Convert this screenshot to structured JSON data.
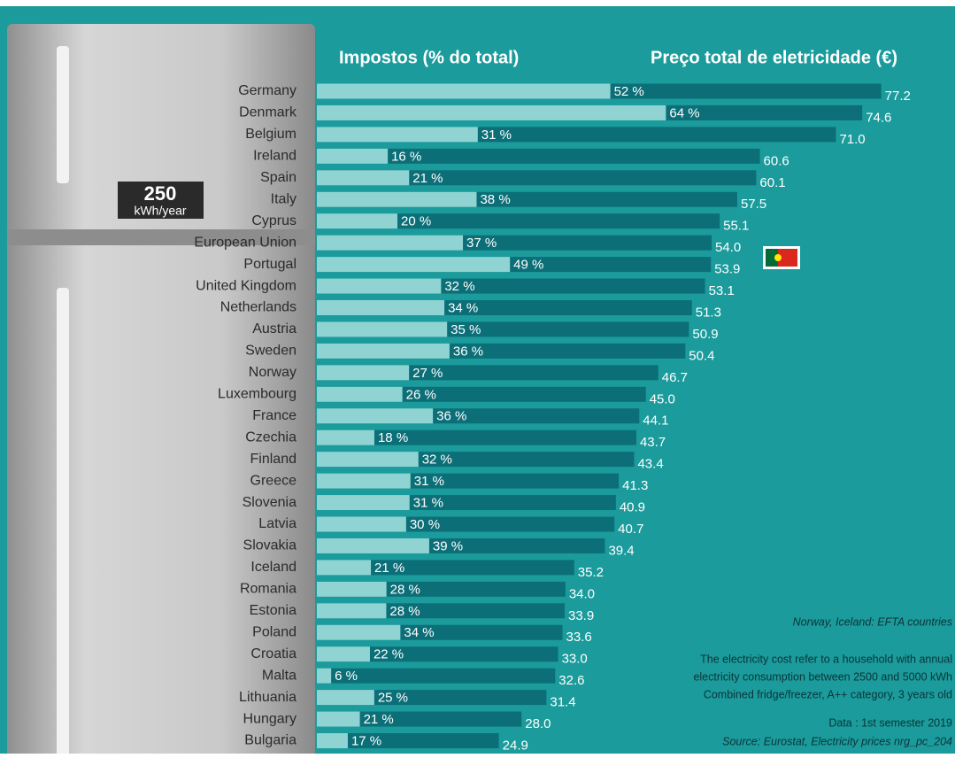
{
  "chart_data": {
    "type": "bar",
    "categories": [
      "Germany",
      "Denmark",
      "Belgium",
      "Ireland",
      "Spain",
      "Italy",
      "Cyprus",
      "European Union",
      "Portugal",
      "United Kingdom",
      "Netherlands",
      "Austria",
      "Sweden",
      "Norway",
      "Luxembourg",
      "France",
      "Czechia",
      "Finland",
      "Greece",
      "Slovenia",
      "Latvia",
      "Slovakia",
      "Iceland",
      "Romania",
      "Estonia",
      "Poland",
      "Croatia",
      "Malta",
      "Lithuania",
      "Hungary",
      "Bulgaria"
    ],
    "series": [
      {
        "name": "Impostos (% do total)",
        "color": "#8fd4d3",
        "values": [
          52,
          64,
          31,
          16,
          21,
          38,
          20,
          37,
          49,
          32,
          34,
          35,
          36,
          27,
          26,
          36,
          18,
          32,
          31,
          31,
          30,
          39,
          21,
          28,
          28,
          34,
          22,
          6,
          25,
          21,
          17
        ],
        "value_labels": [
          "52 %",
          "64 %",
          "31 %",
          "16 %",
          "21 %",
          "38 %",
          "20 %",
          "37 %",
          "49 %",
          "32 %",
          "34 %",
          "35 %",
          "36 %",
          "27 %",
          "26 %",
          "36 %",
          "18 %",
          "32 %",
          "31 %",
          "31 %",
          "30 %",
          "39 %",
          "21 %",
          "28 %",
          "28 %",
          "34 %",
          "22 %",
          "6 %",
          "25 %",
          "21 %",
          "17 %"
        ]
      },
      {
        "name": "Preço total de eletricidade (€)",
        "color": "#0c6f78",
        "values": [
          77.2,
          74.6,
          71.0,
          60.6,
          60.1,
          57.5,
          55.1,
          54.0,
          53.9,
          53.1,
          51.3,
          50.9,
          50.4,
          46.7,
          45.0,
          44.1,
          43.7,
          43.4,
          41.3,
          40.9,
          40.7,
          39.4,
          35.2,
          34.0,
          33.9,
          33.6,
          33.0,
          32.6,
          31.4,
          28.0,
          24.9
        ],
        "value_labels": [
          "77.2",
          "74.6",
          "71.0",
          "60.6",
          "60.1",
          "57.5",
          "55.1",
          "54.0",
          "53.9",
          "53.1",
          "51.3",
          "50.9",
          "50.4",
          "46.7",
          "45.0",
          "44.1",
          "43.7",
          "43.4",
          "41.3",
          "40.9",
          "40.7",
          "39.4",
          "35.2",
          "34.0",
          "33.9",
          "33.6",
          "33.0",
          "32.6",
          "31.4",
          "28.0",
          "24.9"
        ]
      }
    ],
    "xlim": [
      0,
      80
    ],
    "badge": {
      "value": "250",
      "unit": "kWh/year"
    },
    "notes": [
      "Norway, Iceland: EFTA countries",
      "The electricity cost refer to a household with annual",
      "electricity consumption between 2500 and 5000 kWh",
      "Combined fridge/freezer, A++ category, 3 years old",
      "Data : 1st semester 2019",
      "Source: Eurostat, Electricity prices nrg_pc_204"
    ]
  }
}
